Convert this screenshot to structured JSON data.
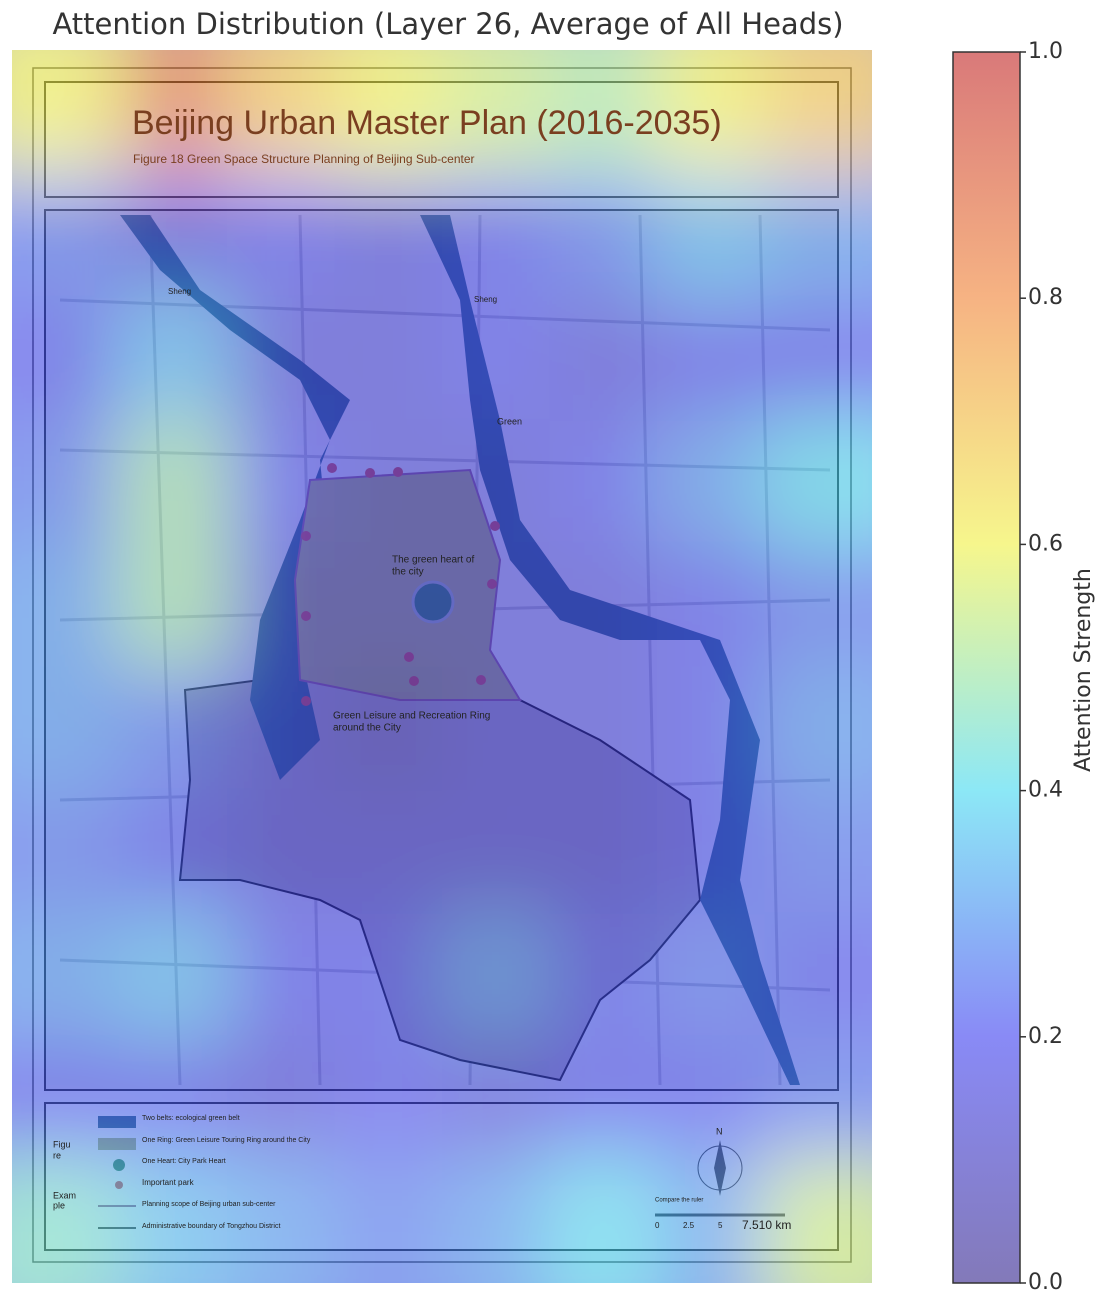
{
  "chart_data": {
    "type": "heatmap",
    "title": "Attention Distribution (Layer 26, Average of All Heads)",
    "colorbar_label": "Attention Strength",
    "zlim": [
      0,
      1
    ],
    "zticks": [
      {
        "value": 0,
        "label": "0.0"
      },
      0.2,
      0.4,
      0.6,
      0.8,
      {
        "value": 1,
        "label": "1.0"
      }
    ],
    "colorscale": [
      [
        0,
        "#30208a"
      ],
      [
        0.2,
        "#3a3cf0"
      ],
      [
        0.4,
        "#40d8f0"
      ],
      [
        0.6,
        "#f0f040"
      ],
      [
        0.8,
        "#f08030"
      ],
      [
        1,
        "#c02020"
      ]
    ],
    "values": [
      [
        0.6,
        0.9,
        0.7,
        0.6,
        0.55,
        0.5,
        0.6,
        0.7
      ],
      [
        0.25,
        0.15,
        0.2,
        0.15,
        0.2,
        0.25,
        0.35,
        0.3
      ],
      [
        0.2,
        0.35,
        0.15,
        0.15,
        0.2,
        0.15,
        0.2,
        0.2
      ],
      [
        0.25,
        0.5,
        0.2,
        0.15,
        0.15,
        0.2,
        0.3,
        0.4
      ],
      [
        0.3,
        0.5,
        0.15,
        0.15,
        0.15,
        0.15,
        0.2,
        0.25
      ],
      [
        0.3,
        0.25,
        0.15,
        0.1,
        0.15,
        0.15,
        0.2,
        0.3
      ],
      [
        0.25,
        0.2,
        0.15,
        0.15,
        0.15,
        0.15,
        0.2,
        0.25
      ],
      [
        0.3,
        0.35,
        0.2,
        0.2,
        0.3,
        0.2,
        0.25,
        0.2
      ],
      [
        0.2,
        0.2,
        0.15,
        0.2,
        0.15,
        0.2,
        0.2,
        0.25
      ],
      [
        0.45,
        0.35,
        0.3,
        0.25,
        0.3,
        0.4,
        0.3,
        0.55
      ]
    ],
    "annotations": [
      "Beijing Urban Master Plan (2016-2035)",
      "Figure 18 Green Space Structure Planning of Beijing Sub-center",
      "Sheng",
      "Sheng",
      "Green",
      "The green heart of",
      "the city",
      "Green Leisure and Recreation Ring",
      "around the City",
      "Figu",
      "re",
      "Exam",
      "ple",
      "Two belts: ecological green belt",
      "One Ring: Green Leisure Touring Ring around the City",
      "One Heart: City Park Heart",
      "Important park",
      "Planning scope of Beijing urban sub-center",
      "Administrative boundary of Tongzhou District",
      "N",
      "Compare the ruler",
      "0",
      "2.5",
      "5",
      "7.510 km"
    ]
  }
}
